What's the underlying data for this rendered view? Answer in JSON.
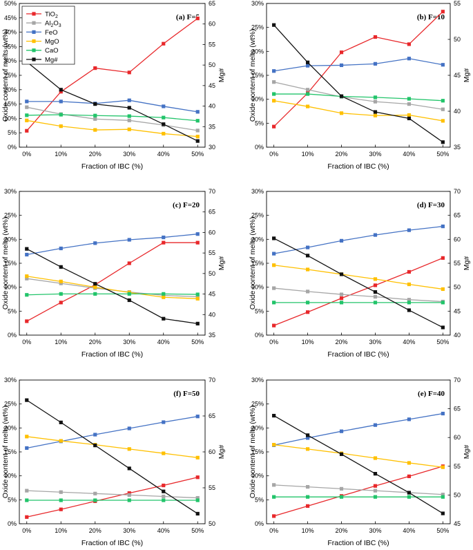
{
  "colors": {
    "TiO2": "#e8282b",
    "Al2O3": "#a6a6a6",
    "FeO": "#4472c4",
    "MgO": "#ffc000",
    "CaO": "#22c46a",
    "Mg#": "#111111"
  },
  "legend": {
    "placement": "top-left of first panel",
    "entries": [
      {
        "key": "TiO2",
        "base": "TiO",
        "sub": "2",
        "rest": "",
        "sub2": ""
      },
      {
        "key": "Al2O3",
        "base": "Al",
        "sub": "2",
        "rest": "O",
        "sub2": "3"
      },
      {
        "key": "FeO",
        "base": "FeO",
        "sub": "",
        "rest": "",
        "sub2": ""
      },
      {
        "key": "MgO",
        "base": "MgO",
        "sub": "",
        "rest": "",
        "sub2": ""
      },
      {
        "key": "CaO",
        "base": "CaO",
        "sub": "",
        "rest": "",
        "sub2": ""
      },
      {
        "key": "Mg#",
        "base": "Mg#",
        "sub": "",
        "rest": "",
        "sub2": ""
      }
    ]
  },
  "chart_data": [
    {
      "type": "line",
      "panel_label": "(a) F=5",
      "xlabel": "Fraction of IBC (%)",
      "ylabel": "Oxide content of melts (wt%)",
      "y2label": "Mg#",
      "x_ticks": [
        "0%",
        "10%",
        "20%",
        "30%",
        "40%",
        "50%"
      ],
      "x": [
        0,
        10,
        20,
        30,
        40,
        50
      ],
      "ylim": [
        0,
        50
      ],
      "y_ticks": [
        0,
        5,
        10,
        15,
        20,
        25,
        30,
        35,
        40,
        45,
        50
      ],
      "y2lim": [
        30,
        65
      ],
      "y2_ticks": [
        30,
        35,
        40,
        45,
        50,
        55,
        60,
        65
      ],
      "series": [
        {
          "key": "TiO2",
          "values": [
            5.7,
            19.3,
            27.5,
            26.0,
            36.0,
            44.8
          ]
        },
        {
          "key": "Al2O3",
          "values": [
            13.9,
            11.5,
            9.8,
            9.3,
            7.7,
            5.8
          ]
        },
        {
          "key": "FeO",
          "values": [
            15.9,
            15.9,
            15.2,
            16.3,
            14.2,
            12.3
          ]
        },
        {
          "key": "MgO",
          "values": [
            9.3,
            7.3,
            6.0,
            6.2,
            4.7,
            3.7
          ]
        },
        {
          "key": "CaO",
          "values": [
            11.1,
            11.3,
            11.0,
            10.8,
            10.3,
            9.2
          ]
        }
      ],
      "mg_series": {
        "key": "Mg#",
        "values": [
          50.8,
          44.0,
          40.5,
          39.6,
          35.6,
          31.5
        ]
      }
    },
    {
      "type": "line",
      "panel_label": "(b) F=10",
      "xlabel": "Fraction of IBC (%)",
      "ylabel": "Oxide content of melts (wt%)",
      "y2label": "Mg#",
      "x_ticks": [
        "0%",
        "10%",
        "20%",
        "30%",
        "40%",
        "50%"
      ],
      "x": [
        0,
        10,
        20,
        30,
        40,
        50
      ],
      "ylim": [
        0,
        30
      ],
      "y_ticks": [
        0,
        5,
        10,
        15,
        20,
        25,
        30
      ],
      "y2lim": [
        35,
        55
      ],
      "y2_ticks": [
        35,
        40,
        45,
        50,
        55
      ],
      "series": [
        {
          "key": "TiO2",
          "values": [
            4.3,
            11.3,
            19.8,
            23.0,
            21.5,
            28.3
          ]
        },
        {
          "key": "Al2O3",
          "values": [
            13.6,
            12.0,
            10.5,
            9.5,
            9.0,
            7.9
          ]
        },
        {
          "key": "FeO",
          "values": [
            15.9,
            17.0,
            17.1,
            17.4,
            18.5,
            17.2
          ]
        },
        {
          "key": "MgO",
          "values": [
            9.7,
            8.5,
            7.1,
            6.6,
            6.7,
            5.5
          ]
        },
        {
          "key": "CaO",
          "values": [
            11.1,
            11.1,
            10.6,
            10.4,
            10.1,
            9.7
          ]
        }
      ],
      "mg_series": {
        "key": "Mg#",
        "values": [
          52.0,
          46.8,
          42.1,
          39.9,
          39.0,
          35.7
        ]
      }
    },
    {
      "type": "line",
      "panel_label": "(c) F=20",
      "xlabel": "Fraction of IBC (%)",
      "ylabel": "Oxide content of melts (wt%)",
      "y2label": "Mg#",
      "x_ticks": [
        "0%",
        "10%",
        "20%",
        "30%",
        "40%",
        "50%"
      ],
      "x": [
        0,
        10,
        20,
        30,
        40,
        50
      ],
      "ylim": [
        0,
        30
      ],
      "y_ticks": [
        0,
        5,
        10,
        15,
        20,
        25,
        30
      ],
      "y2lim": [
        35,
        70
      ],
      "y2_ticks": [
        35,
        40,
        45,
        50,
        55,
        60,
        65,
        70
      ],
      "series": [
        {
          "key": "TiO2",
          "values": [
            2.9,
            6.8,
            10.5,
            15.0,
            19.3,
            19.3
          ]
        },
        {
          "key": "Al2O3",
          "values": [
            11.8,
            10.8,
            9.8,
            9.0,
            8.3,
            8.0
          ]
        },
        {
          "key": "FeO",
          "values": [
            16.8,
            18.1,
            19.2,
            19.9,
            20.4,
            21.1
          ]
        },
        {
          "key": "MgO",
          "values": [
            12.3,
            11.2,
            10.0,
            8.9,
            7.9,
            7.6
          ]
        },
        {
          "key": "CaO",
          "values": [
            8.4,
            8.6,
            8.6,
            8.6,
            8.6,
            8.5
          ]
        }
      ],
      "mg_series": {
        "key": "Mg#",
        "values": [
          56.0,
          51.6,
          47.5,
          43.5,
          39.0,
          37.8
        ]
      }
    },
    {
      "type": "line",
      "panel_label": "(d) F=30",
      "xlabel": "Fraction of IBC (%)",
      "ylabel": "Oxide content of melts (wt%)",
      "y2label": "Mg#",
      "x_ticks": [
        "0%",
        "10%",
        "20%",
        "30%",
        "40%",
        "50%"
      ],
      "x": [
        0,
        10,
        20,
        30,
        40,
        50
      ],
      "ylim": [
        0,
        30
      ],
      "y_ticks": [
        0,
        5,
        10,
        15,
        20,
        25,
        30
      ],
      "y2lim": [
        40,
        70
      ],
      "y2_ticks": [
        40,
        45,
        50,
        55,
        60,
        65,
        70
      ],
      "series": [
        {
          "key": "TiO2",
          "values": [
            2.0,
            4.8,
            7.7,
            10.4,
            13.2,
            16.1
          ]
        },
        {
          "key": "Al2O3",
          "values": [
            9.8,
            9.1,
            8.5,
            8.0,
            7.4,
            7.0
          ]
        },
        {
          "key": "FeO",
          "values": [
            17.0,
            18.3,
            19.7,
            20.9,
            21.9,
            22.7
          ]
        },
        {
          "key": "MgO",
          "values": [
            14.6,
            13.7,
            12.7,
            11.7,
            10.6,
            9.6
          ]
        },
        {
          "key": "CaO",
          "values": [
            6.8,
            6.8,
            6.8,
            6.8,
            6.8,
            6.8
          ]
        }
      ],
      "mg_series": {
        "key": "Mg#",
        "values": [
          60.2,
          56.6,
          52.7,
          49.0,
          45.2,
          41.6
        ]
      }
    },
    {
      "type": "line",
      "panel_label": "(f) F=50",
      "xlabel": "Fraction of IBC (%)",
      "ylabel": "Oxide content of melts (wt%)",
      "y2label": "Mg#",
      "x_ticks": [
        "0%",
        "10%",
        "20%",
        "30%",
        "40%",
        "50%"
      ],
      "x": [
        0,
        10,
        20,
        30,
        40,
        50
      ],
      "ylim": [
        0,
        30
      ],
      "y_ticks": [
        0,
        5,
        10,
        15,
        20,
        25,
        30
      ],
      "y2lim": [
        50,
        70
      ],
      "y2_ticks": [
        50,
        55,
        60,
        65,
        70
      ],
      "series": [
        {
          "key": "TiO2",
          "values": [
            1.4,
            3.0,
            4.7,
            6.4,
            8.0,
            9.7
          ]
        },
        {
          "key": "Al2O3",
          "values": [
            6.9,
            6.6,
            6.3,
            6.0,
            5.7,
            5.4
          ]
        },
        {
          "key": "FeO",
          "values": [
            15.8,
            17.2,
            18.6,
            19.9,
            21.2,
            22.4
          ]
        },
        {
          "key": "MgO",
          "values": [
            18.2,
            17.3,
            16.5,
            15.6,
            14.7,
            13.8
          ]
        },
        {
          "key": "CaO",
          "values": [
            4.9,
            4.9,
            4.9,
            4.9,
            4.9,
            4.9
          ]
        }
      ],
      "mg_series": {
        "key": "Mg#",
        "values": [
          67.2,
          64.1,
          60.9,
          57.7,
          54.5,
          51.4
        ]
      }
    },
    {
      "type": "line",
      "panel_label": "(e) F=40",
      "xlabel": "Fraction of IBC (%)",
      "ylabel": "Oxide content of melts (wt%)",
      "y2label": "Mg#",
      "x_ticks": [
        "0%",
        "10%",
        "20%",
        "30%",
        "40%",
        "50%"
      ],
      "x": [
        0,
        10,
        20,
        30,
        40,
        50
      ],
      "ylim": [
        0,
        30
      ],
      "y_ticks": [
        0,
        5,
        10,
        15,
        20,
        25,
        30
      ],
      "y2lim": [
        45,
        70
      ],
      "y2_ticks": [
        45,
        50,
        55,
        60,
        65,
        70
      ],
      "series": [
        {
          "key": "TiO2",
          "values": [
            1.6,
            3.7,
            5.8,
            7.9,
            9.9,
            12.0
          ]
        },
        {
          "key": "Al2O3",
          "values": [
            8.1,
            7.7,
            7.3,
            6.9,
            6.5,
            6.1
          ]
        },
        {
          "key": "FeO",
          "values": [
            16.4,
            17.9,
            19.3,
            20.6,
            21.8,
            23.0
          ]
        },
        {
          "key": "MgO",
          "values": [
            16.5,
            15.6,
            14.7,
            13.7,
            12.7,
            11.8
          ]
        },
        {
          "key": "CaO",
          "values": [
            5.6,
            5.6,
            5.6,
            5.6,
            5.6,
            5.6
          ]
        }
      ],
      "mg_series": {
        "key": "Mg#",
        "values": [
          63.8,
          60.4,
          57.1,
          53.7,
          50.4,
          46.8
        ]
      }
    }
  ]
}
